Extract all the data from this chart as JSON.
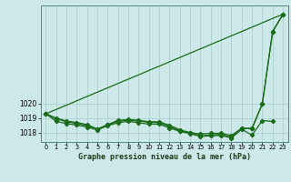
{
  "title": "Graphe pression niveau de la mer (hPa)",
  "bg_color": "#cce8e8",
  "grid_color": "#aacccc",
  "line_color": "#1a6b1a",
  "xlim": [
    -0.5,
    23.5
  ],
  "ylim": [
    1017.35,
    1026.8
  ],
  "yticks": [
    1018,
    1019,
    1020
  ],
  "xtick_labels": [
    "0",
    "1",
    "2",
    "3",
    "4",
    "5",
    "6",
    "7",
    "8",
    "9",
    "10",
    "11",
    "12",
    "13",
    "14",
    "15",
    "16",
    "17",
    "18",
    "19",
    "20",
    "21",
    "22",
    "23"
  ],
  "series1": [
    1019.3,
    1019.0,
    1018.8,
    1018.7,
    1018.55,
    1018.25,
    1018.55,
    1018.85,
    1018.9,
    1018.85,
    1018.75,
    1018.75,
    1018.5,
    1018.2,
    1018.0,
    1017.9,
    1017.95,
    1017.95,
    1017.8,
    1018.3,
    1018.3,
    1020.0,
    1025.0,
    1026.2
  ],
  "series2": [
    1019.3,
    1018.95,
    1018.75,
    1018.62,
    1018.48,
    1018.22,
    1018.52,
    1018.78,
    1018.85,
    1018.8,
    1018.7,
    1018.68,
    1018.42,
    1018.12,
    1017.97,
    1017.78,
    1017.83,
    1017.88,
    1017.68,
    1018.28,
    1018.28,
    1019.98,
    1024.98,
    1026.18
  ],
  "series3_x": [
    0,
    23
  ],
  "series3_y": [
    1019.3,
    1026.2
  ],
  "series4": [
    1019.3,
    1018.78,
    1018.62,
    1018.52,
    1018.38,
    1018.18,
    1018.48,
    1018.68,
    1018.78,
    1018.68,
    1018.58,
    1018.58,
    1018.32,
    1018.08,
    1017.93,
    1017.73,
    1017.78,
    1017.8,
    1017.63,
    1018.22,
    1017.83,
    1018.83,
    1018.78,
    null
  ]
}
